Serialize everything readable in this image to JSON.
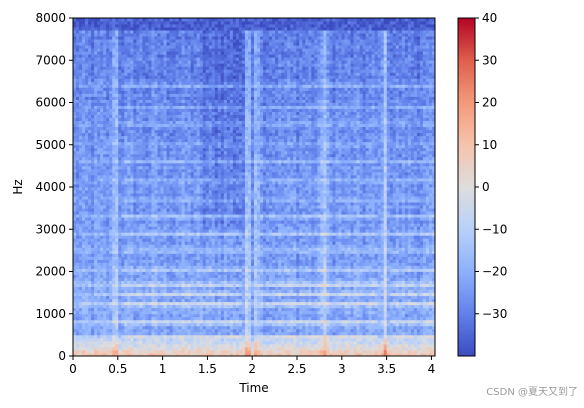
{
  "chart_data": {
    "type": "heatmap",
    "xlabel": "Time",
    "ylabel": "Hz",
    "xlim": [
      0,
      4.04
    ],
    "ylim": [
      0,
      8000
    ],
    "xticks": [
      0,
      0.5,
      1,
      1.5,
      2,
      2.5,
      3,
      3.5,
      4
    ],
    "xtick_labels": [
      "0",
      "0.5",
      "1",
      "1.5",
      "2",
      "2.5",
      "3",
      "3.5",
      "4"
    ],
    "yticks": [
      0,
      1000,
      2000,
      3000,
      4000,
      5000,
      6000,
      7000,
      8000
    ],
    "ytick_labels": [
      "0",
      "1000",
      "2000",
      "3000",
      "4000",
      "5000",
      "6000",
      "7000",
      "8000"
    ],
    "colormap": "coolwarm",
    "colorbar": {
      "range": [
        -40,
        40
      ],
      "ticks": [
        -30,
        -20,
        -10,
        0,
        10,
        20,
        30,
        40
      ],
      "tick_labels": [
        "−30",
        "−20",
        "−10",
        "0",
        "10",
        "20",
        "30",
        "40"
      ]
    },
    "harmonic_bands_hz": [
      450,
      800,
      1230,
      1480,
      1700,
      2050,
      2500,
      2900,
      3300,
      3700,
      4150,
      4600,
      5000,
      5500,
      5900,
      6400
    ],
    "bright_columns_s": [
      0.47,
      1.95,
      2.05,
      2.8,
      3.48
    ]
  },
  "watermark": "CSDN @夏天又到了"
}
